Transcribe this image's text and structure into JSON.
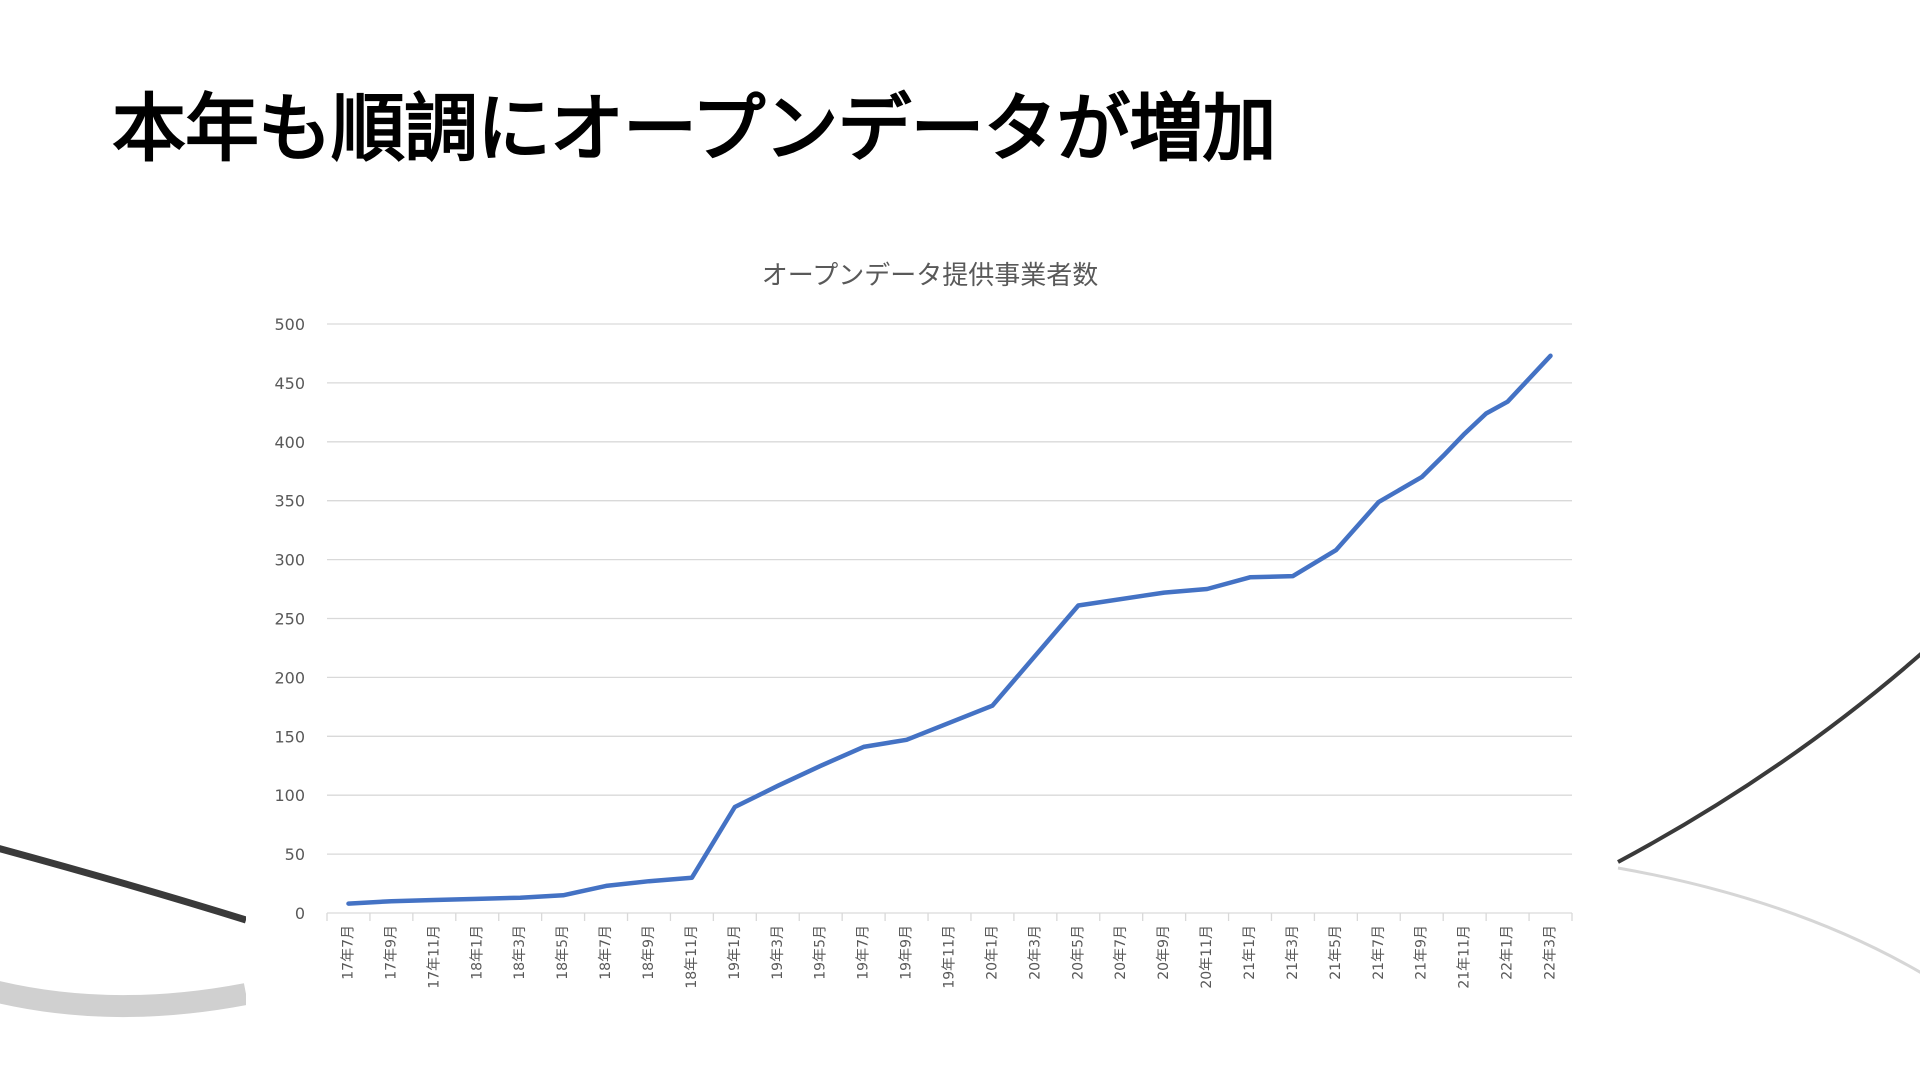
{
  "slide": {
    "title": "本年も順調にオープンデータが増加"
  },
  "colors": {
    "series": "#4472C4",
    "grid": "#D9D9D9",
    "tick_text": "#595959",
    "title_text": "#000000"
  },
  "chart_data": {
    "type": "line",
    "title": "オープンデータ提供事業者数",
    "xlabel": "",
    "ylabel": "",
    "ylim": [
      0,
      500
    ],
    "yticks": [
      0,
      50,
      100,
      150,
      200,
      250,
      300,
      350,
      400,
      450,
      500
    ],
    "grid": true,
    "legend": "none",
    "categories": [
      "17年7月",
      "17年9月",
      "17年11月",
      "18年1月",
      "18年3月",
      "18年5月",
      "18年7月",
      "18年9月",
      "18年11月",
      "19年1月",
      "19年3月",
      "19年5月",
      "19年7月",
      "19年9月",
      "19年11月",
      "20年1月",
      "20年3月",
      "20年5月",
      "20年7月",
      "20年9月",
      "20年11月",
      "21年1月",
      "21年3月",
      "21年5月",
      "21年7月",
      "21年9月",
      "21年11月",
      "22年1月",
      "22年3月"
    ],
    "series": [
      {
        "values": [
          8,
          10,
          11,
          12,
          13,
          15,
          23,
          27,
          30,
          90,
          108,
          125,
          141,
          147,
          176,
          261,
          272,
          275,
          285,
          286,
          308,
          349,
          370,
          388,
          407,
          424,
          434,
          473
        ],
        "x": [
          0,
          1,
          2,
          3,
          4,
          5,
          6,
          7,
          8,
          9,
          10,
          11,
          12,
          13,
          15,
          17,
          19,
          20,
          21,
          22,
          23,
          24,
          25,
          25.5,
          26,
          26.5,
          27,
          28
        ]
      }
    ]
  }
}
